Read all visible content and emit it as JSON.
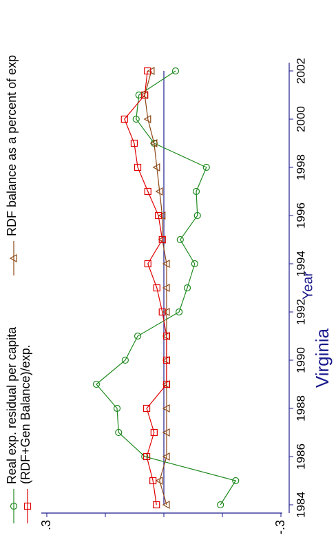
{
  "chart_data": {
    "type": "line",
    "title": "Virginia",
    "x_label": "Year",
    "x": [
      1984,
      1985,
      1986,
      1987,
      1988,
      1989,
      1990,
      1991,
      1992,
      1993,
      1994,
      1995,
      1996,
      1997,
      1998,
      1999,
      2000,
      2001,
      2002
    ],
    "series": [
      {
        "name": "Real exp. residual per capita",
        "color": "#1f8a1f",
        "marker": "circle",
        "values": [
          -0.145,
          -0.184,
          0.049,
          0.116,
          0.12,
          0.173,
          0.099,
          0.067,
          -0.039,
          -0.06,
          -0.079,
          -0.042,
          -0.086,
          -0.083,
          -0.109,
          0.025,
          0.071,
          0.064,
          -0.03
        ]
      },
      {
        "name": "RDF balance as a percent of exp",
        "color": "#8b4513",
        "marker": "triangle",
        "values": [
          -0.007,
          0.011,
          -0.007,
          -0.007,
          -0.007,
          -0.007,
          -0.007,
          -0.007,
          -0.007,
          -0.007,
          -0.007,
          0.004,
          0.004,
          0.011,
          0.018,
          0.025,
          0.041,
          0.049,
          0.032
        ]
      },
      {
        "name": "(RDF+Gen Balance)/exp.",
        "color": "#e00000",
        "marker": "square",
        "values": [
          0.019,
          0.028,
          0.044,
          0.025,
          0.044,
          -0.007,
          -0.007,
          -0.007,
          0.004,
          0.018,
          0.041,
          0.004,
          0.014,
          0.041,
          0.067,
          0.076,
          0.101,
          0.049,
          0.042
        ]
      }
    ],
    "hline": {
      "value": 0,
      "color": "#1a1a8c"
    },
    "xlim": [
      1984,
      2002
    ],
    "xticks": [
      1984,
      1986,
      1988,
      1990,
      1992,
      1994,
      1996,
      1998,
      2000,
      2002
    ],
    "ylim": [
      -0.3,
      0.3
    ],
    "yticks": [
      {
        "value": -0.3,
        "label": "-.3"
      },
      {
        "value": 0.3,
        "label": ".3"
      }
    ],
    "yminorticks": [
      -0.15,
      0,
      0.15
    ],
    "axis_color": "#1a1a8c"
  }
}
